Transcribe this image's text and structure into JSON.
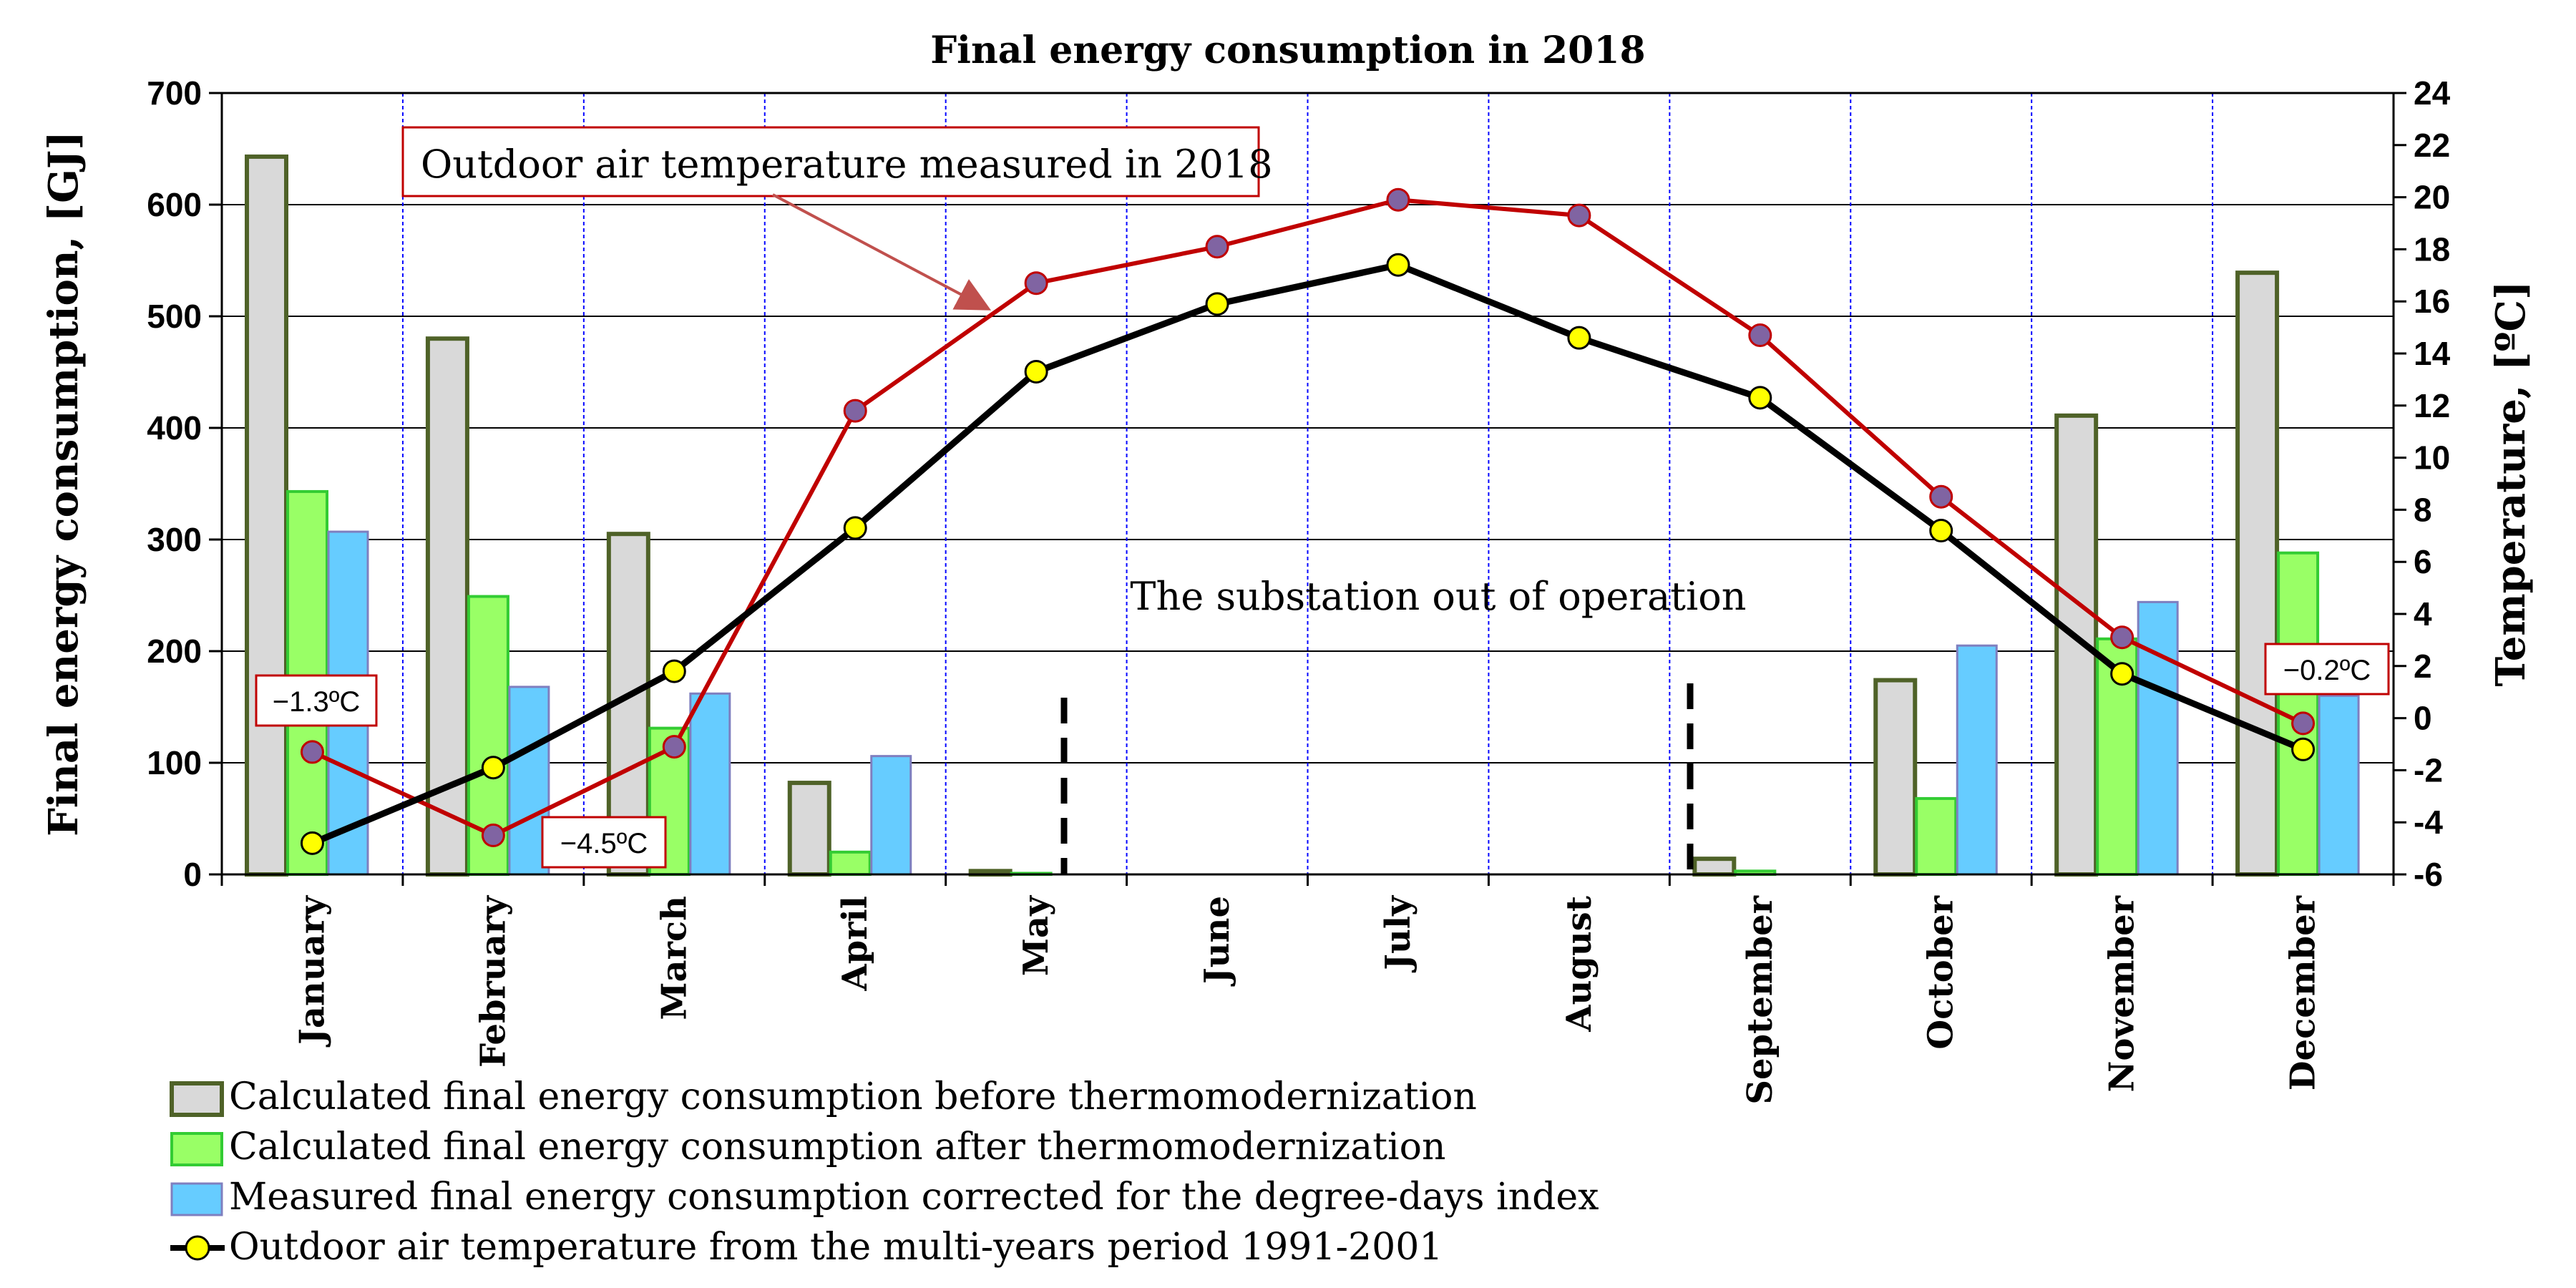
{
  "chart_data": {
    "type": "bar+line",
    "title": "Final energy consumption in 2018",
    "categories": [
      "January",
      "February",
      "March",
      "April",
      "May",
      "June",
      "July",
      "August",
      "September",
      "October",
      "November",
      "December"
    ],
    "left_axis": {
      "label": "Final energy consumption,  [GJ]",
      "range": [
        0,
        700
      ],
      "ticks": [
        "0",
        "100",
        "200",
        "300",
        "400",
        "500",
        "600",
        "700"
      ]
    },
    "right_axis": {
      "label": "Temperature, [ºC]",
      "range": [
        -6,
        24
      ],
      "ticks": [
        "-6",
        "-4",
        "-2",
        "0",
        "2",
        "4",
        "6",
        "8",
        "10",
        "12",
        "14",
        "16",
        "18",
        "20",
        "22",
        "24"
      ]
    },
    "bar_series": [
      {
        "name": "Calculated final energy consumption before thermomodernization",
        "color": "#d9d9d9",
        "stroke": "#4f6228",
        "values": [
          643,
          480,
          305,
          82,
          3,
          0,
          0,
          0,
          14,
          174,
          411,
          539
        ]
      },
      {
        "name": "Calculated final energy consumption after thermomodernization",
        "color": "#99ff66",
        "stroke": "#33cc33",
        "values": [
          343,
          249,
          131,
          20,
          1,
          0,
          0,
          0,
          3,
          68,
          211,
          288
        ]
      },
      {
        "name": "Measured final energy consumption corrected for the degree-days index",
        "color": "#66ccff",
        "stroke": "#7f7fbf",
        "values": [
          307,
          168,
          162,
          106,
          0,
          0,
          0,
          0,
          0,
          205,
          244,
          160
        ]
      }
    ],
    "line_series": [
      {
        "name": "Outdoor air temperature from the multi-years period 1991-2001",
        "color": "#000000",
        "marker": "#ffff00",
        "values": [
          -4.8,
          -1.9,
          1.8,
          7.3,
          13.3,
          15.9,
          17.4,
          14.6,
          12.3,
          7.2,
          1.7,
          -1.2
        ]
      },
      {
        "name": "Outdoor air temperature measured in 2018",
        "color": "#c00000",
        "marker": "#8064a2",
        "values": [
          -1.3,
          -4.5,
          -1.1,
          11.8,
          16.7,
          18.1,
          19.9,
          19.3,
          14.7,
          8.5,
          3.1,
          -0.2
        ]
      }
    ],
    "annotations": {
      "callout_2018": "Outdoor air temperature measured in 2018",
      "out_of_operation": "The substation out of operation",
      "jan_temp": "−1.3ºC",
      "feb_temp": "−4.5ºC",
      "dec_temp": "−0.2ºC"
    },
    "legend": [
      "Calculated final energy consumption before thermomodernization",
      "Calculated final energy consumption after thermomodernization",
      "Measured final energy consumption corrected for the degree-days index",
      "Outdoor air temperature from the multi-years period 1991-2001"
    ]
  }
}
